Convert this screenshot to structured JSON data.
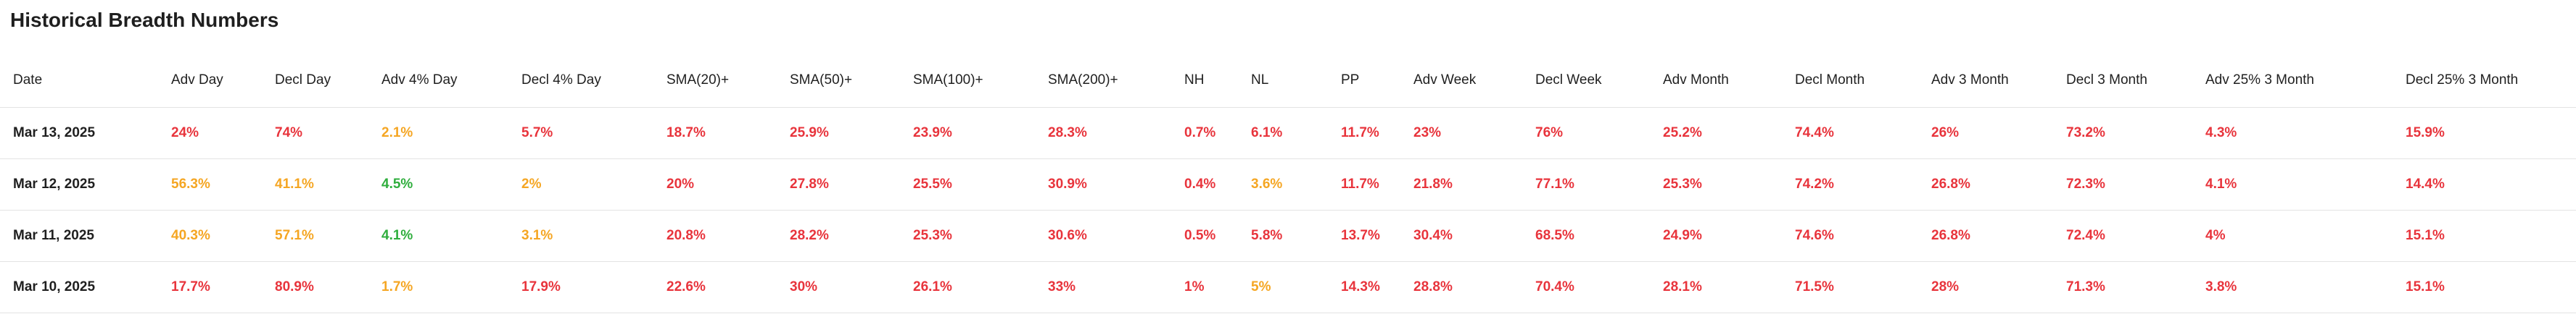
{
  "title": "Historical Breadth Numbers",
  "colors": {
    "red": "#e8343c",
    "orange": "#f5a623",
    "green": "#2fae3d"
  },
  "columns": [
    "Date",
    "Adv Day",
    "Decl Day",
    "Adv 4% Day",
    "Decl 4% Day",
    "SMA(20)+",
    "SMA(50)+",
    "SMA(100)+",
    "SMA(200)+",
    "NH",
    "NL",
    "PP",
    "Adv Week",
    "Decl Week",
    "Adv Month",
    "Decl Month",
    "Adv 3 Month",
    "Decl 3 Month",
    "Adv 25% 3 Month",
    "Decl 25% 3 Month"
  ],
  "rows": [
    {
      "date": "Mar 13, 2025",
      "cells": [
        {
          "v": "24%",
          "c": "red"
        },
        {
          "v": "74%",
          "c": "red"
        },
        {
          "v": "2.1%",
          "c": "orange"
        },
        {
          "v": "5.7%",
          "c": "red"
        },
        {
          "v": "18.7%",
          "c": "red"
        },
        {
          "v": "25.9%",
          "c": "red"
        },
        {
          "v": "23.9%",
          "c": "red"
        },
        {
          "v": "28.3%",
          "c": "red"
        },
        {
          "v": "0.7%",
          "c": "red"
        },
        {
          "v": "6.1%",
          "c": "red"
        },
        {
          "v": "11.7%",
          "c": "red"
        },
        {
          "v": "23%",
          "c": "red"
        },
        {
          "v": "76%",
          "c": "red"
        },
        {
          "v": "25.2%",
          "c": "red"
        },
        {
          "v": "74.4%",
          "c": "red"
        },
        {
          "v": "26%",
          "c": "red"
        },
        {
          "v": "73.2%",
          "c": "red"
        },
        {
          "v": "4.3%",
          "c": "red"
        },
        {
          "v": "15.9%",
          "c": "red"
        }
      ]
    },
    {
      "date": "Mar 12, 2025",
      "cells": [
        {
          "v": "56.3%",
          "c": "orange"
        },
        {
          "v": "41.1%",
          "c": "orange"
        },
        {
          "v": "4.5%",
          "c": "green"
        },
        {
          "v": "2%",
          "c": "orange"
        },
        {
          "v": "20%",
          "c": "red"
        },
        {
          "v": "27.8%",
          "c": "red"
        },
        {
          "v": "25.5%",
          "c": "red"
        },
        {
          "v": "30.9%",
          "c": "red"
        },
        {
          "v": "0.4%",
          "c": "red"
        },
        {
          "v": "3.6%",
          "c": "orange"
        },
        {
          "v": "11.7%",
          "c": "red"
        },
        {
          "v": "21.8%",
          "c": "red"
        },
        {
          "v": "77.1%",
          "c": "red"
        },
        {
          "v": "25.3%",
          "c": "red"
        },
        {
          "v": "74.2%",
          "c": "red"
        },
        {
          "v": "26.8%",
          "c": "red"
        },
        {
          "v": "72.3%",
          "c": "red"
        },
        {
          "v": "4.1%",
          "c": "red"
        },
        {
          "v": "14.4%",
          "c": "red"
        }
      ]
    },
    {
      "date": "Mar 11, 2025",
      "cells": [
        {
          "v": "40.3%",
          "c": "orange"
        },
        {
          "v": "57.1%",
          "c": "orange"
        },
        {
          "v": "4.1%",
          "c": "green"
        },
        {
          "v": "3.1%",
          "c": "orange"
        },
        {
          "v": "20.8%",
          "c": "red"
        },
        {
          "v": "28.2%",
          "c": "red"
        },
        {
          "v": "25.3%",
          "c": "red"
        },
        {
          "v": "30.6%",
          "c": "red"
        },
        {
          "v": "0.5%",
          "c": "red"
        },
        {
          "v": "5.8%",
          "c": "red"
        },
        {
          "v": "13.7%",
          "c": "red"
        },
        {
          "v": "30.4%",
          "c": "red"
        },
        {
          "v": "68.5%",
          "c": "red"
        },
        {
          "v": "24.9%",
          "c": "red"
        },
        {
          "v": "74.6%",
          "c": "red"
        },
        {
          "v": "26.8%",
          "c": "red"
        },
        {
          "v": "72.4%",
          "c": "red"
        },
        {
          "v": "4%",
          "c": "red"
        },
        {
          "v": "15.1%",
          "c": "red"
        }
      ]
    },
    {
      "date": "Mar 10, 2025",
      "cells": [
        {
          "v": "17.7%",
          "c": "red"
        },
        {
          "v": "80.9%",
          "c": "red"
        },
        {
          "v": "1.7%",
          "c": "orange"
        },
        {
          "v": "17.9%",
          "c": "red"
        },
        {
          "v": "22.6%",
          "c": "red"
        },
        {
          "v": "30%",
          "c": "red"
        },
        {
          "v": "26.1%",
          "c": "red"
        },
        {
          "v": "33%",
          "c": "red"
        },
        {
          "v": "1%",
          "c": "red"
        },
        {
          "v": "5%",
          "c": "orange"
        },
        {
          "v": "14.3%",
          "c": "red"
        },
        {
          "v": "28.8%",
          "c": "red"
        },
        {
          "v": "70.4%",
          "c": "red"
        },
        {
          "v": "28.1%",
          "c": "red"
        },
        {
          "v": "71.5%",
          "c": "red"
        },
        {
          "v": "28%",
          "c": "red"
        },
        {
          "v": "71.3%",
          "c": "red"
        },
        {
          "v": "3.8%",
          "c": "red"
        },
        {
          "v": "15.1%",
          "c": "red"
        }
      ]
    }
  ]
}
